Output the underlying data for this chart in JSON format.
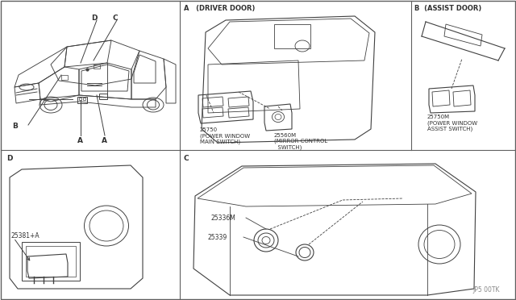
{
  "bg_color": "#ffffff",
  "line_color": "#404040",
  "border_color": "#606060",
  "text_color": "#303030",
  "watermark": "JP5 00TK",
  "panel_A_label": "A   (DRIVER DOOR)",
  "panel_B_label": "B  (ASSIST DOOR)",
  "panel_C_label": "C",
  "panel_D_label": "D",
  "part_25750": "25750\n(POWER WINDOW\nMAIN SWITCH)",
  "part_25560M": "25560M\n(MIRROR CONTROL\n  SWITCH)",
  "part_25750M": "25750M\n(POWER WINDOW\nASSIST SWITCH)",
  "part_25336M": "25336M",
  "part_25339": "25339",
  "part_25381": "25381+A",
  "label_A": "A",
  "label_B": "B",
  "label_C": "C",
  "label_D": "D"
}
